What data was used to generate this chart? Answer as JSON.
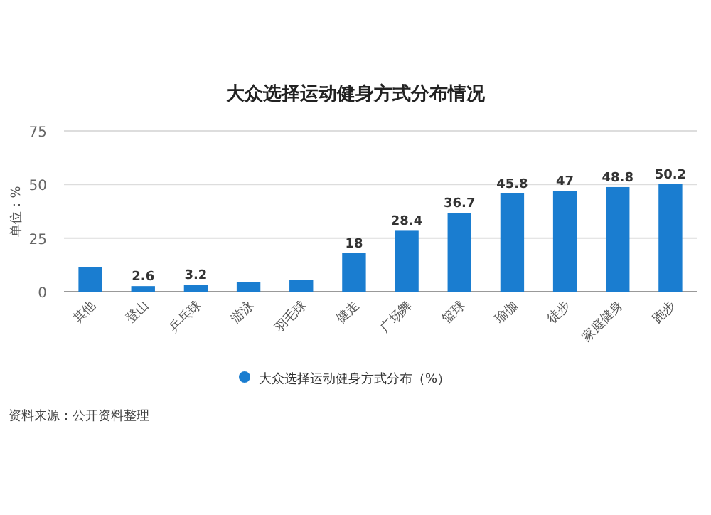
{
  "chart_data": {
    "type": "bar",
    "title": "大众选择运动健身方式分布情况",
    "ylabel": "单位：%",
    "categories": [
      "其他",
      "登山",
      "乒乓球",
      "游泳",
      "羽毛球",
      "健走",
      "广场舞",
      "篮球",
      "瑜伽",
      "徒步",
      "家庭健身",
      "跑步"
    ],
    "series": [
      {
        "name": "大众选择运动健身方式分布（%）",
        "color": "#1a7dd0",
        "values": [
          11.5,
          2.6,
          3.2,
          4.5,
          5.5,
          18,
          28.4,
          36.7,
          45.8,
          47,
          48.8,
          50.2
        ],
        "value_labels": [
          null,
          "2.6",
          "3.2",
          null,
          null,
          "18",
          "28.4",
          "36.7",
          "45.8",
          "47",
          "48.8",
          "50.2"
        ]
      }
    ],
    "ylim": [
      0,
      75
    ],
    "yticks": [
      0,
      25,
      50,
      75
    ],
    "grid": "y",
    "legend": "bottom",
    "annotations": [
      "资料来源：公开资料整理"
    ]
  }
}
